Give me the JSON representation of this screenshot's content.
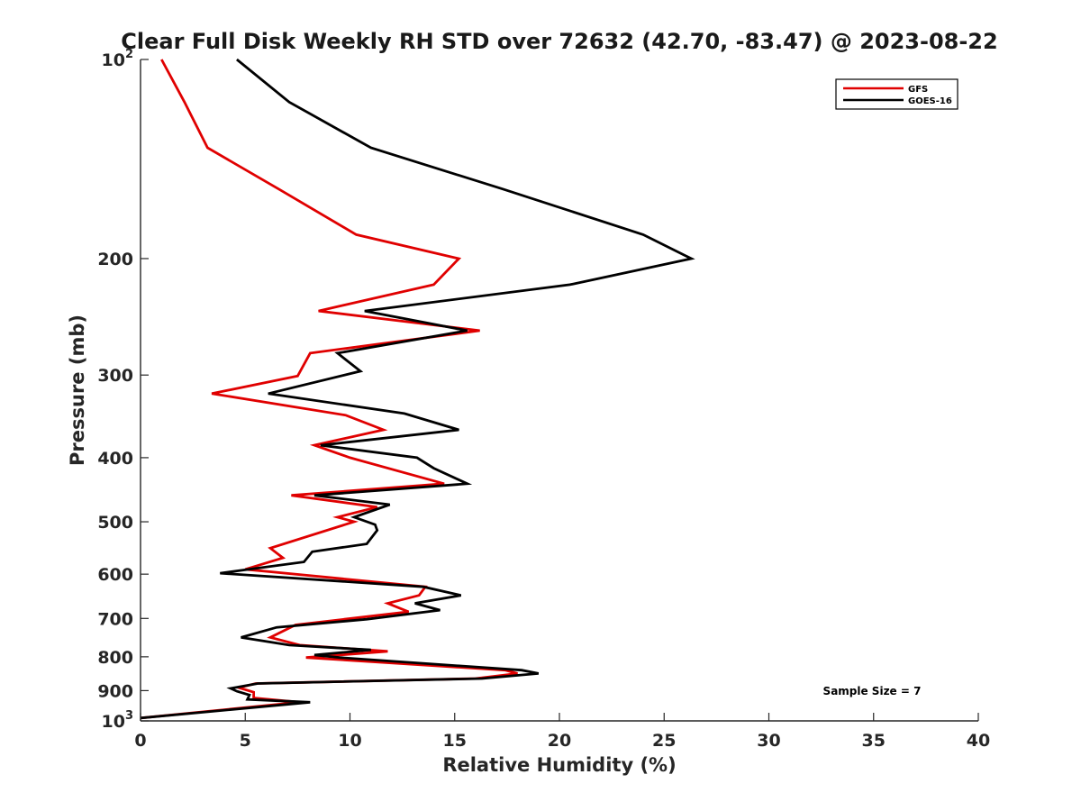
{
  "chart_data": {
    "type": "line",
    "title": "Clear Full Disk Weekly RH STD over 72632 (42.70, -83.47) @ 2023-08-22",
    "xlabel": "Relative Humidity (%)",
    "ylabel": "Pressure (mb)",
    "xlim": [
      0,
      40
    ],
    "ylim": [
      100,
      1000
    ],
    "yscale": "log",
    "yreversed": false,
    "grid": false,
    "legend_position": "top-right",
    "x_ticks": [
      0,
      5,
      10,
      15,
      20,
      25,
      30,
      35,
      40
    ],
    "x_tick_labels": [
      "0",
      "5",
      "10",
      "15",
      "20",
      "25",
      "30",
      "35",
      "40"
    ],
    "y_ticks": [
      100,
      200,
      300,
      400,
      500,
      600,
      700,
      800,
      900,
      1000
    ],
    "y_tick_labels": [
      {
        "base": "10",
        "sup": "2"
      },
      {
        "base": "200",
        "sup": ""
      },
      {
        "base": "300",
        "sup": ""
      },
      {
        "base": "400",
        "sup": ""
      },
      {
        "base": "500",
        "sup": ""
      },
      {
        "base": "600",
        "sup": ""
      },
      {
        "base": "700",
        "sup": ""
      },
      {
        "base": "800",
        "sup": ""
      },
      {
        "base": "900",
        "sup": ""
      },
      {
        "base": "10",
        "sup": "3"
      }
    ],
    "annotation": "Sample Size = 7",
    "series": [
      {
        "name": "GFS",
        "color": "#e00000",
        "points": [
          [
            1.0,
            100
          ],
          [
            2.1,
            116
          ],
          [
            3.2,
            136
          ],
          [
            6.6,
            157
          ],
          [
            10.3,
            184
          ],
          [
            15.2,
            200
          ],
          [
            14.0,
            219
          ],
          [
            8.5,
            240
          ],
          [
            16.2,
            257
          ],
          [
            8.1,
            278
          ],
          [
            7.5,
            301
          ],
          [
            3.4,
            320
          ],
          [
            9.8,
            345
          ],
          [
            11.6,
            363
          ],
          [
            8.3,
            383
          ],
          [
            10.0,
            400
          ],
          [
            14.5,
            438
          ],
          [
            7.2,
            456
          ],
          [
            11.3,
            475
          ],
          [
            9.4,
            492
          ],
          [
            10.2,
            500
          ],
          [
            6.2,
            548
          ],
          [
            6.8,
            567
          ],
          [
            5.0,
            590
          ],
          [
            13.6,
            627
          ],
          [
            13.3,
            646
          ],
          [
            11.8,
            664
          ],
          [
            12.8,
            684
          ],
          [
            7.4,
            716
          ],
          [
            6.2,
            748
          ],
          [
            7.6,
            768
          ],
          [
            11.8,
            785
          ],
          [
            7.9,
            802
          ],
          [
            17.4,
            838
          ],
          [
            18.0,
            848
          ],
          [
            16.0,
            863
          ],
          [
            5.5,
            878
          ],
          [
            4.7,
            891
          ],
          [
            5.4,
            905
          ],
          [
            5.4,
            923
          ],
          [
            7.6,
            937
          ],
          [
            0.0,
            990
          ]
        ]
      },
      {
        "name": "GOES-16",
        "color": "#000000",
        "points": [
          [
            4.6,
            100
          ],
          [
            7.1,
            116
          ],
          [
            11.0,
            136
          ],
          [
            17.3,
            157
          ],
          [
            24.0,
            184
          ],
          [
            26.3,
            200
          ],
          [
            20.5,
            219
          ],
          [
            10.7,
            240
          ],
          [
            15.6,
            257
          ],
          [
            9.4,
            278
          ],
          [
            10.5,
            296
          ],
          [
            6.1,
            320
          ],
          [
            12.6,
            343
          ],
          [
            15.2,
            363
          ],
          [
            8.6,
            383
          ],
          [
            13.2,
            400
          ],
          [
            14.0,
            415
          ],
          [
            15.6,
            438
          ],
          [
            8.3,
            456
          ],
          [
            11.9,
            471
          ],
          [
            10.2,
            492
          ],
          [
            11.2,
            505
          ],
          [
            11.3,
            515
          ],
          [
            10.8,
            540
          ],
          [
            8.2,
            555
          ],
          [
            7.8,
            575
          ],
          [
            3.8,
            598
          ],
          [
            13.5,
            627
          ],
          [
            15.3,
            646
          ],
          [
            13.1,
            664
          ],
          [
            14.3,
            680
          ],
          [
            10.8,
            702
          ],
          [
            6.5,
            722
          ],
          [
            4.8,
            748
          ],
          [
            7.1,
            768
          ],
          [
            11.0,
            781
          ],
          [
            8.3,
            795
          ],
          [
            9.5,
            802
          ],
          [
            18.2,
            838
          ],
          [
            19.0,
            848
          ],
          [
            16.3,
            863
          ],
          [
            5.6,
            878
          ],
          [
            4.3,
            893
          ],
          [
            4.6,
            902
          ],
          [
            5.2,
            914
          ],
          [
            5.1,
            928
          ],
          [
            8.1,
            937
          ],
          [
            0.0,
            990
          ]
        ]
      }
    ]
  }
}
